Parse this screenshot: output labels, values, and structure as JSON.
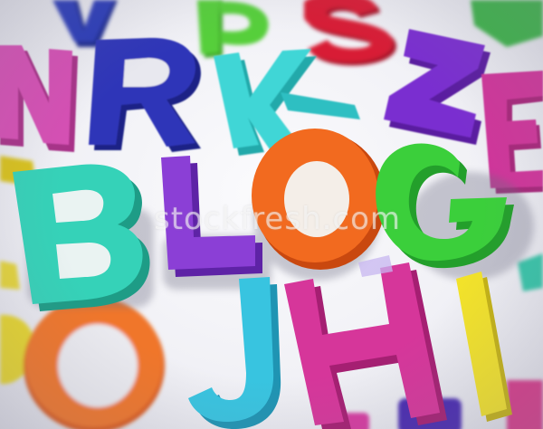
{
  "scene": {
    "watermark_text": "stockfresh.com",
    "word_letters": [
      {
        "char": "B",
        "color": "#35d2b8"
      },
      {
        "char": "L",
        "color": "#8b3fd6"
      },
      {
        "char": "O",
        "color": "#f26a1f"
      },
      {
        "char": "G",
        "color": "#3bcf3b"
      }
    ],
    "scattered_letters": [
      {
        "char": "N",
        "color": "#d64fb4"
      },
      {
        "char": "R",
        "color": "#2f35b8"
      },
      {
        "char": "K",
        "color": "#3fd6d6"
      },
      {
        "char": "S",
        "color": "#d81f35"
      },
      {
        "char": "Z",
        "color": "#7a2fd0"
      },
      {
        "char": "E",
        "color": "#d0349a"
      },
      {
        "char": "V",
        "color": "#2a3ab8"
      },
      {
        "char": "P",
        "color": "#56cf3a"
      },
      {
        "char": "Q",
        "color": "#f0762a"
      },
      {
        "char": "J",
        "color": "#38c4e0"
      },
      {
        "char": "H",
        "color": "#d6369a"
      },
      {
        "char": "I",
        "color": "#f2e22a"
      }
    ]
  }
}
